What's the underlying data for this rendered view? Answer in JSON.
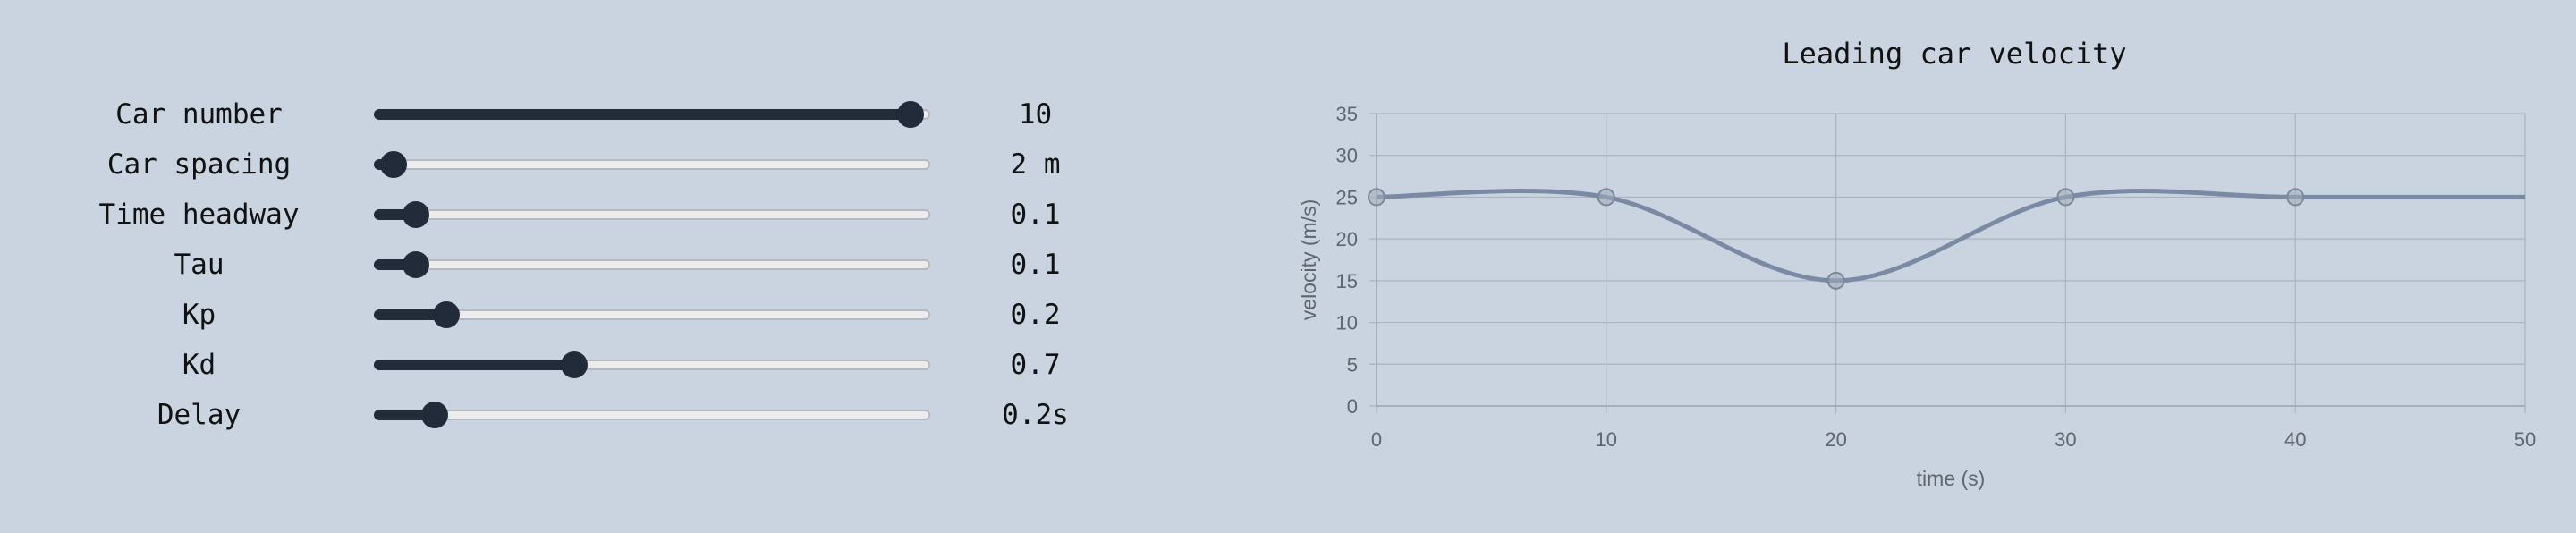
{
  "controls": [
    {
      "label": "Car number",
      "value_text": "10",
      "position": 0.965
    },
    {
      "label": "Car spacing",
      "value_text": "2 m",
      "position": 0.035
    },
    {
      "label": "Time headway",
      "value_text": "0.1",
      "position": 0.075
    },
    {
      "label": "Tau",
      "value_text": "0.1",
      "position": 0.075
    },
    {
      "label": "Kp",
      "value_text": "0.2",
      "position": 0.13
    },
    {
      "label": "Kd",
      "value_text": "0.7",
      "position": 0.36
    },
    {
      "label": "Delay",
      "value_text": "0.2s",
      "position": 0.11
    }
  ],
  "chart_title": "Leading car velocity",
  "chart_data": {
    "type": "line",
    "title": "Leading car velocity",
    "xlabel": "time (s)",
    "ylabel": "velocity (m/s)",
    "xlim": [
      0,
      50
    ],
    "ylim": [
      0,
      35
    ],
    "x_ticks": [
      "0",
      "10",
      "20",
      "30",
      "40",
      "50"
    ],
    "y_ticks": [
      "0",
      "5",
      "10",
      "15",
      "20",
      "25",
      "30",
      "35"
    ],
    "grid": true,
    "legend": "none",
    "series": [
      {
        "x": [
          0,
          10,
          20,
          30,
          40,
          50
        ],
        "y": [
          25,
          25,
          15,
          25,
          25,
          25
        ],
        "color": "#7a8aa5"
      }
    ],
    "markers": {
      "x": [
        0,
        10,
        20,
        30,
        40
      ],
      "y": [
        25,
        25,
        15,
        25,
        25
      ]
    }
  }
}
